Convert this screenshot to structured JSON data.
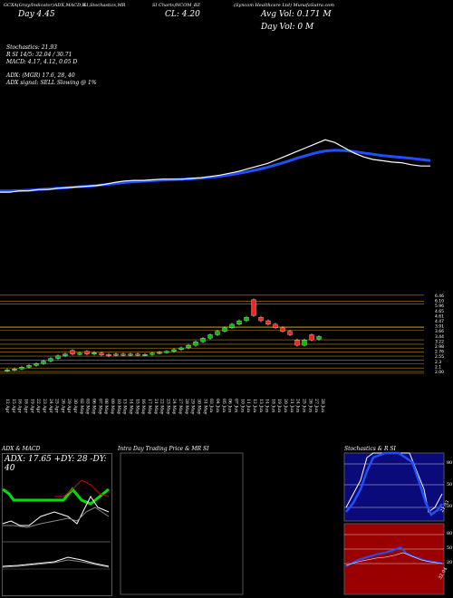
{
  "header": {
    "top_strip": "GCXA(Gray/Indicator)ADX,MACD,R",
    "top_strip_2": "SI,Stochastics,MR",
    "top_strip_3": "SI Charts)NCOM_BZ",
    "top_strip_4": "(Syncom Healthcare Ltd) MunafaSutra.com",
    "day_label": "Day",
    "day_value": "4.45",
    "close_label": "CL: 4.20",
    "avg_vol": "Avg Vol: 0.171 M",
    "day_vol": "Day Vol: 0   M"
  },
  "indicators": {
    "stochastics": "Stochastics: 21.93",
    "rsi": "R                   SI 14/5: 32.04  /  30.71",
    "macd": "MACD: 4.17, 4.12, 0.05 D",
    "adx": "ADX:                              (MGR) 17.6,  28,  40",
    "adx_signal": "ADX  signal: SELL  Slowing @ 1%"
  },
  "price_axis_labels": [
    "6.46",
    "6.10",
    "5.96",
    "4.65",
    "4.61",
    "4.47",
    "3.91",
    "3.66",
    "3.44",
    "3.22",
    "2.98",
    "2.76",
    "2.55",
    "2.3",
    "2.1",
    "2.00"
  ],
  "date_labels": [
    "12 Apr",
    "15 Apr",
    "16 Apr",
    "18 Apr",
    "19 Apr",
    "22 Apr",
    "23 Apr",
    "24 Apr",
    "25 Apr",
    "26 Apr",
    "29 Apr",
    "30 Apr",
    "02 May",
    "03 May",
    "06 May",
    "07 May",
    "08 May",
    "09 May",
    "10 May",
    "13 May",
    "14 May",
    "15 May",
    "16 May",
    "17 May",
    "21 May",
    "22 May",
    "23 May",
    "24 May",
    "27 May",
    "28 May",
    "29 May",
    "30 May",
    "31 May",
    "03 Jun",
    "04 Jun",
    "05 Jun",
    "06 Jun",
    "07 Jun",
    "10 Jun",
    "11 Jun",
    "12 Jun",
    "13 Jun",
    "14 Jun",
    "18 Jun",
    "19 Jun",
    "20 Jun",
    "21 Jun",
    "24 Jun",
    "25 Jun",
    "26 Jun",
    "27 Jun",
    "28 Jun"
  ],
  "panels": {
    "adx_macd_title": "ADX  & MACD",
    "adx_values": "ADX: 17.65  +DY: 28  -DY: 40",
    "intraday_title": "Intra  Day Trading Price  & MR                    SI",
    "stoch_title": "Stochastics & R                  SI",
    "stoch_axis": [
      "80",
      "50",
      "20"
    ],
    "stoch_value": "21.93",
    "rsi_axis": [
      "80",
      "50",
      "20"
    ],
    "rsi_value": "32.04"
  },
  "colors": {
    "ema_line": "#1f4fff",
    "price_line": "#ffffff",
    "up_candle": "#00c000",
    "down_candle": "#ff2020",
    "grid": "#b8860b",
    "stoch_bg": "#0a0a7a",
    "rsi_bg": "#9a0000",
    "adx_green": "#00e000",
    "adx_red": "#d00000"
  },
  "chart_data": {
    "type": "line",
    "series": [
      {
        "values": [
          2.2,
          2.2,
          2.3,
          2.3,
          2.4,
          2.4,
          2.5,
          2.55,
          2.6,
          2.65,
          2.7,
          2.8,
          2.95,
          3.05,
          3.1,
          3.1,
          3.15,
          3.2,
          3.2,
          3.2,
          3.25,
          3.3,
          3.4,
          3.5,
          3.65,
          3.8,
          4.0,
          4.2,
          4.4,
          4.7,
          5.0,
          5.3,
          5.6,
          5.9,
          6.2,
          6.0,
          5.6,
          5.2,
          4.9,
          4.7,
          4.6,
          4.5,
          4.45,
          4.3,
          4.2,
          4.2
        ]
      },
      {
        "values": [
          2.3,
          2.3,
          2.32,
          2.35,
          2.4,
          2.45,
          2.5,
          2.55,
          2.6,
          2.65,
          2.7,
          2.78,
          2.86,
          2.94,
          3.0,
          3.04,
          3.08,
          3.12,
          3.15,
          3.18,
          3.22,
          3.27,
          3.34,
          3.42,
          3.52,
          3.64,
          3.78,
          3.94,
          4.12,
          4.32,
          4.54,
          4.78,
          5.0,
          5.2,
          5.35,
          5.4,
          5.38,
          5.3,
          5.2,
          5.1,
          5.0,
          4.92,
          4.85,
          4.78,
          4.7,
          4.62
        ]
      }
    ],
    "candles": [
      {
        "o": 2.15,
        "c": 2.2
      },
      {
        "o": 2.2,
        "c": 2.25
      },
      {
        "o": 2.25,
        "c": 2.35
      },
      {
        "o": 2.35,
        "c": 2.45
      },
      {
        "o": 2.45,
        "c": 2.55
      },
      {
        "o": 2.55,
        "c": 2.7
      },
      {
        "o": 2.7,
        "c": 2.85
      },
      {
        "o": 2.85,
        "c": 3.0
      },
      {
        "o": 3.0,
        "c": 3.1
      },
      {
        "o": 3.3,
        "c": 3.1
      },
      {
        "o": 3.1,
        "c": 3.15
      },
      {
        "o": 3.25,
        "c": 3.1
      },
      {
        "o": 3.1,
        "c": 3.18
      },
      {
        "o": 3.15,
        "c": 3.05
      },
      {
        "o": 3.08,
        "c": 3.0
      },
      {
        "o": 3.05,
        "c": 3.1
      },
      {
        "o": 3.1,
        "c": 3.05
      },
      {
        "o": 3.05,
        "c": 3.1
      },
      {
        "o": 3.1,
        "c": 3.05
      },
      {
        "o": 3.05,
        "c": 3.08
      },
      {
        "o": 3.08,
        "c": 3.15
      },
      {
        "o": 3.15,
        "c": 3.2
      },
      {
        "o": 3.2,
        "c": 3.25
      },
      {
        "o": 3.25,
        "c": 3.35
      },
      {
        "o": 3.35,
        "c": 3.45
      },
      {
        "o": 3.45,
        "c": 3.6
      },
      {
        "o": 3.6,
        "c": 3.8
      },
      {
        "o": 3.8,
        "c": 4.0
      },
      {
        "o": 4.0,
        "c": 4.2
      },
      {
        "o": 4.2,
        "c": 4.4
      },
      {
        "o": 4.4,
        "c": 4.6
      },
      {
        "o": 4.6,
        "c": 4.8
      },
      {
        "o": 4.8,
        "c": 5.0
      },
      {
        "o": 5.0,
        "c": 5.2
      },
      {
        "o": 6.2,
        "c": 5.3
      },
      {
        "o": 5.2,
        "c": 5.0
      },
      {
        "o": 5.0,
        "c": 4.8
      },
      {
        "o": 4.8,
        "c": 4.6
      },
      {
        "o": 4.6,
        "c": 4.4
      },
      {
        "o": 4.4,
        "c": 4.2
      },
      {
        "o": 3.9,
        "c": 3.6
      },
      {
        "o": 3.6,
        "c": 3.9
      },
      {
        "o": 4.2,
        "c": 3.9
      },
      {
        "o": 3.95,
        "c": 4.1
      }
    ]
  }
}
